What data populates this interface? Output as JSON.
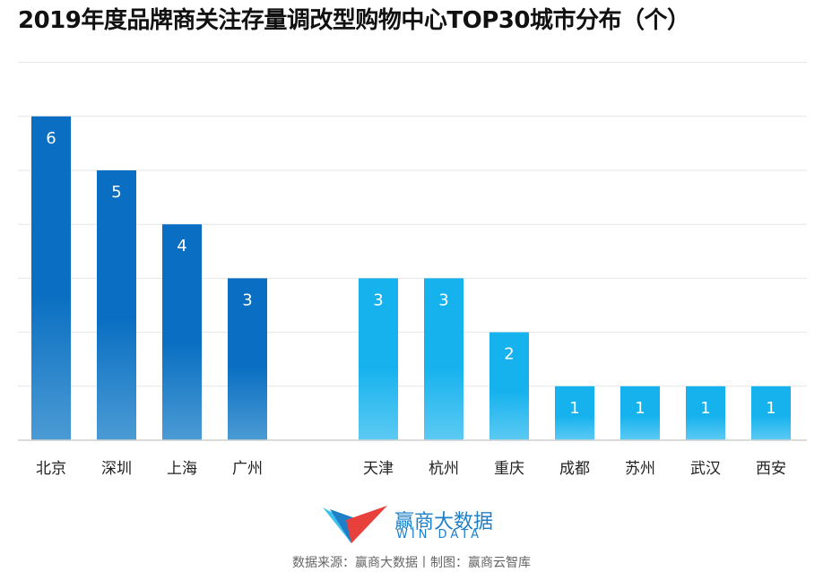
{
  "chart_data": {
    "type": "bar",
    "title": "2019年度品牌商关注存量调改型购物中心TOP30城市分布（个）",
    "categories": [
      "北京",
      "深圳",
      "上海",
      "广州",
      "天津",
      "杭州",
      "重庆",
      "成都",
      "苏州",
      "武汉",
      "西安"
    ],
    "values": [
      6,
      5,
      4,
      3,
      3,
      3,
      2,
      1,
      1,
      1,
      1
    ],
    "groups": [
      {
        "categories": [
          "北京",
          "深圳",
          "上海",
          "广州"
        ],
        "color": "#0a6fc2",
        "color_light": "#4b9bd4"
      },
      {
        "categories": [
          "天津",
          "杭州",
          "重庆",
          "成都",
          "苏州",
          "武汉",
          "西安"
        ],
        "color": "#16b2ee",
        "color_light": "#5ccaf3"
      }
    ],
    "ylim": [
      0,
      7
    ],
    "grid": true,
    "legend": "none"
  },
  "logo": {
    "name_cn": "赢商大数据",
    "name_en": "WIN DATA",
    "colors": {
      "red": "#e8413c",
      "blue": "#1e7fc8",
      "cyan": "#3cc0ee"
    }
  },
  "source": "数据来源：赢商大数据丨制图：赢商云智库"
}
